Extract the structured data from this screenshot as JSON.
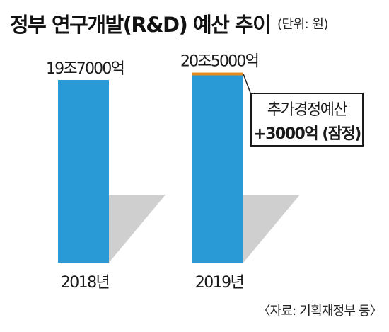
{
  "header": {
    "title": "정부 연구개발(R&D) 예산 추이",
    "unit": "(단위: 원)"
  },
  "chart_data": {
    "type": "bar",
    "categories": [
      "2018년",
      "2019년"
    ],
    "series": [
      {
        "values": [
          19.7,
          20.2
        ],
        "color": "#2a9ad6"
      },
      {
        "values": [
          0,
          0.3
        ],
        "color": "#e88a1a"
      }
    ],
    "data_labels": [
      "19조7000억",
      "20조5000억"
    ],
    "ylim": [
      0,
      21
    ],
    "grid": false,
    "legend": "none",
    "annotation": {
      "line1": "추가경정예산",
      "line2": "+3000억 (잠정)"
    }
  },
  "footer": {
    "source": "〈자료: 기획재정부 등〉"
  },
  "colors": {
    "bar": "#2a9ad6",
    "increment": "#e88a1a",
    "shadow": "#cfcfcf"
  }
}
